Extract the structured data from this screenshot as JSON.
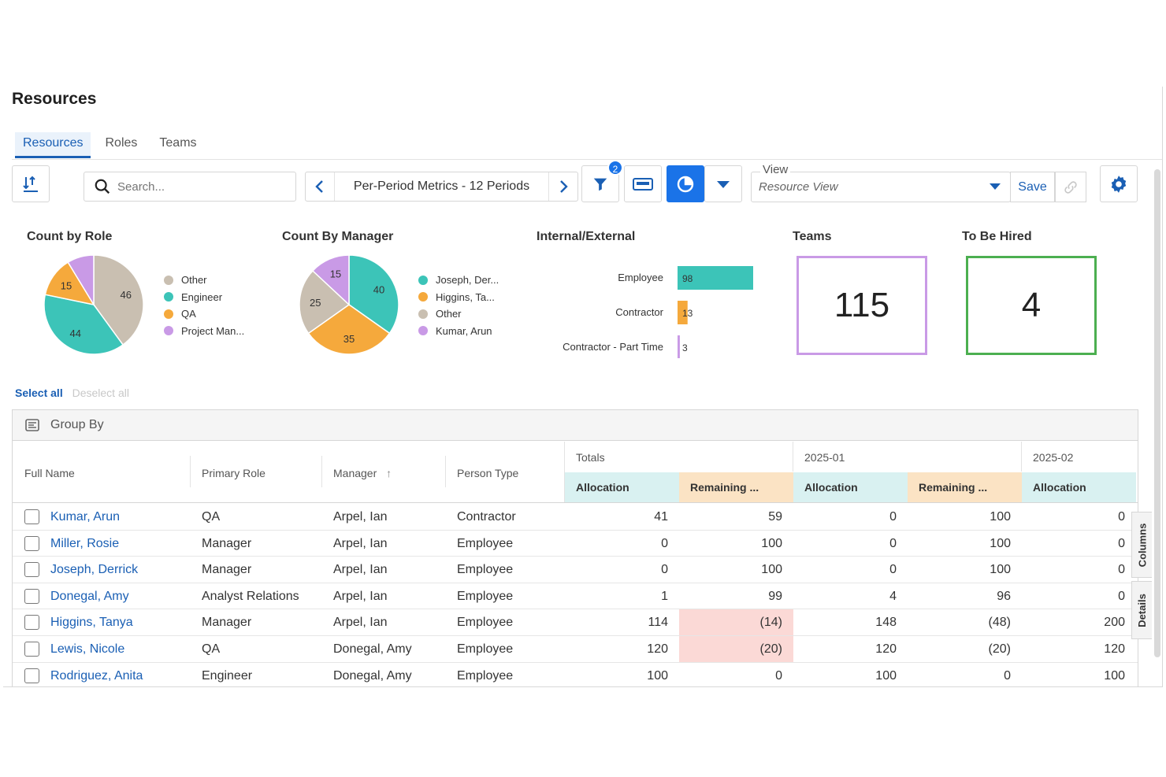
{
  "page": {
    "title": "Resources"
  },
  "tabs": [
    {
      "label": "Resources",
      "active": true
    },
    {
      "label": "Roles",
      "active": false
    },
    {
      "label": "Teams",
      "active": false
    }
  ],
  "toolbar": {
    "search_placeholder": "Search...",
    "period_label": "Per-Period Metrics - 12 Periods",
    "filter_badge": "2",
    "view_label": "View",
    "view_value": "Resource View",
    "save_label": "Save"
  },
  "widgets": {
    "count_by_role": {
      "title": "Count by Role",
      "legend": [
        {
          "label": "Other",
          "color": "#c9bfb1"
        },
        {
          "label": "Engineer",
          "color": "#3cc4b8"
        },
        {
          "label": "QA",
          "color": "#f5a93c"
        },
        {
          "label": "Project Man...",
          "color": "#c99ae6"
        }
      ]
    },
    "count_by_manager": {
      "title": "Count By Manager",
      "legend": [
        {
          "label": "Joseph, Der...",
          "color": "#3cc4b8"
        },
        {
          "label": "Higgins, Ta...",
          "color": "#f5a93c"
        },
        {
          "label": "Other",
          "color": "#c9bfb1"
        },
        {
          "label": "Kumar, Arun",
          "color": "#c99ae6"
        }
      ]
    },
    "internal_external": {
      "title": "Internal/External"
    },
    "teams": {
      "title": "Teams",
      "value": "115",
      "border_color": "#c99ae6"
    },
    "to_be_hired": {
      "title": "To Be Hired",
      "value": "4",
      "border_color": "#4caf50"
    }
  },
  "chart_data": [
    {
      "type": "pie",
      "title": "Count by Role",
      "categories": [
        "Other",
        "Engineer",
        "QA",
        "Project Man..."
      ],
      "values": [
        46,
        44,
        15,
        10
      ],
      "colors": [
        "#c9bfb1",
        "#3cc4b8",
        "#f5a93c",
        "#c99ae6"
      ],
      "labels": [
        "46",
        "44",
        "15",
        ""
      ]
    },
    {
      "type": "pie",
      "title": "Count By Manager",
      "categories": [
        "Joseph, Der...",
        "Higgins, Ta...",
        "Other",
        "Kumar, Arun"
      ],
      "values": [
        40,
        35,
        25,
        15
      ],
      "colors": [
        "#3cc4b8",
        "#f5a93c",
        "#c9bfb1",
        "#c99ae6"
      ],
      "labels": [
        "40",
        "35",
        "25",
        "15"
      ]
    },
    {
      "type": "bar",
      "title": "Internal/External",
      "orientation": "horizontal",
      "categories": [
        "Employee",
        "Contractor",
        "Contractor - Part Time"
      ],
      "values": [
        98,
        13,
        3
      ],
      "colors": [
        "#3cc4b8",
        "#f5a93c",
        "#c99ae6"
      ],
      "xlim": [
        0,
        98
      ]
    }
  ],
  "links": {
    "select_all": "Select all",
    "deselect_all": "Deselect all"
  },
  "grid": {
    "group_by_label": "Group By",
    "columns": {
      "full_name": "Full Name",
      "primary_role": "Primary Role",
      "manager": "Manager",
      "manager_sort": "↑",
      "person_type": "Person Type"
    },
    "groups": [
      "Totals",
      "2025-01",
      "2025-02"
    ],
    "sub_columns": [
      "Allocation",
      "Remaining ...",
      "Allocation",
      "Remaining ...",
      "Allocation"
    ],
    "rows": [
      {
        "name": "Kumar, Arun",
        "role": "QA",
        "manager": "Arpel, Ian",
        "type": "Contractor",
        "v": [
          "41",
          "59",
          "0",
          "100",
          "0"
        ],
        "neg": [
          false,
          false,
          false,
          false,
          false
        ]
      },
      {
        "name": "Miller, Rosie",
        "role": "Manager",
        "manager": "Arpel, Ian",
        "type": "Employee",
        "v": [
          "0",
          "100",
          "0",
          "100",
          "0"
        ],
        "neg": [
          false,
          false,
          false,
          false,
          false
        ]
      },
      {
        "name": "Joseph, Derrick",
        "role": "Manager",
        "manager": "Arpel, Ian",
        "type": "Employee",
        "v": [
          "0",
          "100",
          "0",
          "100",
          "0"
        ],
        "neg": [
          false,
          false,
          false,
          false,
          false
        ]
      },
      {
        "name": "Donegal, Amy",
        "role": "Analyst Relations",
        "manager": "Arpel, Ian",
        "type": "Employee",
        "v": [
          "1",
          "99",
          "4",
          "96",
          "0"
        ],
        "neg": [
          false,
          false,
          false,
          false,
          false
        ]
      },
      {
        "name": "Higgins, Tanya",
        "role": "Manager",
        "manager": "Arpel, Ian",
        "type": "Employee",
        "v": [
          "114",
          "(14)",
          "148",
          "(48)",
          "200"
        ],
        "neg": [
          false,
          true,
          false,
          false,
          false
        ]
      },
      {
        "name": "Lewis, Nicole",
        "role": "QA",
        "manager": "Donegal, Amy",
        "type": "Employee",
        "v": [
          "120",
          "(20)",
          "120",
          "(20)",
          "120"
        ],
        "neg": [
          false,
          true,
          false,
          false,
          false
        ]
      },
      {
        "name": "Rodriguez, Anita",
        "role": "Engineer",
        "manager": "Donegal, Amy",
        "type": "Employee",
        "v": [
          "100",
          "0",
          "100",
          "0",
          "100"
        ],
        "neg": [
          false,
          false,
          false,
          false,
          false
        ]
      }
    ]
  },
  "side_tabs": {
    "columns": "Columns",
    "details": "Details"
  }
}
